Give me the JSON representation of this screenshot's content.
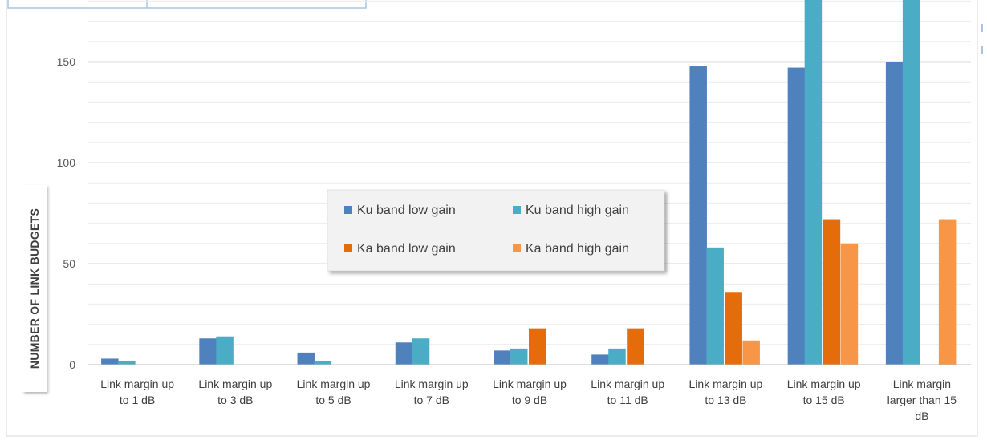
{
  "chart_data": {
    "type": "bar",
    "title": "",
    "xlabel": "",
    "ylabel": "NUMBER OF LINK BUDGETS",
    "ylim": [
      0,
      170
    ],
    "yticks": [
      0,
      50,
      100,
      150
    ],
    "grid": true,
    "legend_position": "center",
    "categories": [
      [
        "Link margin up",
        "to  1 dB"
      ],
      [
        "Link margin up",
        "to  3 dB"
      ],
      [
        "Link margin up",
        "to  5 dB"
      ],
      [
        "Link margin up",
        "to  7 dB"
      ],
      [
        "Link margin up",
        "to  9 dB"
      ],
      [
        "Link margin up",
        "to  11 dB"
      ],
      [
        "Link margin up",
        "to  13 dB"
      ],
      [
        "Link margin up",
        "to  15 dB"
      ],
      [
        "Link margin",
        "larger than  15",
        "dB"
      ]
    ],
    "series": [
      {
        "name": "Ku band low gain",
        "color": "#4f81bd",
        "values": [
          3,
          13,
          6,
          11,
          7,
          5,
          148,
          147,
          150
        ]
      },
      {
        "name": "Ku band high gain",
        "color": "#4bacc6",
        "values": [
          2,
          14,
          2,
          13,
          8,
          8,
          58,
          190,
          190
        ]
      },
      {
        "name": "Ka band low gain",
        "color": "#e46c0a",
        "values": [
          0,
          0,
          0,
          0,
          18,
          18,
          36,
          72,
          0
        ]
      },
      {
        "name": "Ka band high gain",
        "color": "#f79646",
        "values": [
          0,
          0,
          0,
          0,
          0,
          0,
          12,
          60,
          72
        ]
      }
    ]
  }
}
